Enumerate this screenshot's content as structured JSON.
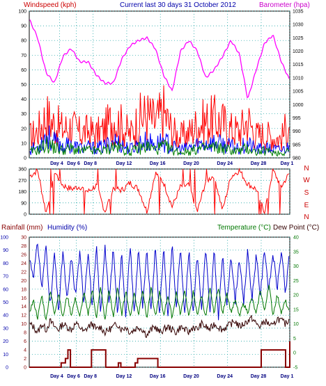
{
  "chart_data": [
    {
      "type": "line",
      "title": "Current last 30 days 31 October 2012",
      "ylabel": "Windspeed (kph)",
      "y2label": "Barometer (hpa)",
      "ylim": [
        0,
        100
      ],
      "y2lim": [
        980,
        1035
      ],
      "yticks": [
        "0",
        "10",
        "20",
        "30",
        "40",
        "50",
        "60",
        "70",
        "80",
        "90",
        "100"
      ],
      "y2ticks": [
        "980",
        "985",
        "990",
        "995",
        "1000",
        "1005",
        "1010",
        "1015",
        "1020",
        "1025",
        "1030",
        "1035"
      ],
      "xticks": [
        "Day 4",
        "Day 6",
        "Day 8",
        "Day 12",
        "Day 16",
        "Day 20",
        "Day 24",
        "Day 28",
        "Day 1"
      ],
      "grid": true,
      "series": [
        {
          "name": "Barometer",
          "color": "#ff00ff",
          "axis": "right",
          "days": [
            0,
            1,
            2,
            3,
            4,
            5,
            6,
            7,
            8,
            9,
            10,
            11,
            12,
            13,
            14,
            15,
            16,
            17,
            18,
            19,
            20,
            21,
            22,
            23,
            24,
            25,
            26,
            27,
            28,
            29,
            30,
            31
          ],
          "values": [
            1032,
            1025,
            1012,
            1008,
            1018,
            1021,
            1016,
            1016,
            1011,
            1008,
            1008,
            1017,
            1022,
            1024,
            1025,
            1021,
            1011,
            1005,
            1020,
            1024,
            1020,
            1010,
            1013,
            1018,
            1024,
            1019,
            1002,
            1013,
            1023,
            1026,
            1016,
            1009
          ]
        },
        {
          "name": "Gust",
          "color": "#ff0000",
          "axis": "left",
          "days": [
            0,
            1,
            2,
            3,
            4,
            5,
            6,
            7,
            8,
            9,
            10,
            11,
            12,
            13,
            14,
            15,
            16,
            17,
            18,
            19,
            20,
            21,
            22,
            23,
            24,
            25,
            26,
            27,
            28,
            29,
            30,
            31
          ],
          "values": [
            22,
            28,
            44,
            35,
            30,
            33,
            26,
            28,
            25,
            30,
            42,
            34,
            24,
            40,
            45,
            37,
            48,
            28,
            22,
            26,
            35,
            38,
            40,
            37,
            30,
            28,
            40,
            24,
            25,
            22,
            20,
            40
          ]
        },
        {
          "name": "Average",
          "color": "#0000ff",
          "axis": "left",
          "days": [
            0,
            1,
            2,
            3,
            4,
            5,
            6,
            7,
            8,
            9,
            10,
            11,
            12,
            13,
            14,
            15,
            16,
            17,
            18,
            19,
            20,
            21,
            22,
            23,
            24,
            25,
            26,
            27,
            28,
            29,
            30,
            31
          ],
          "values": [
            9,
            11,
            24,
            16,
            12,
            14,
            10,
            11,
            10,
            12,
            18,
            14,
            9,
            15,
            17,
            14,
            18,
            11,
            9,
            10,
            14,
            15,
            16,
            14,
            12,
            11,
            15,
            9,
            10,
            9,
            8,
            12
          ]
        },
        {
          "name": "Wind",
          "color": "#008000",
          "axis": "left",
          "days": [
            0,
            1,
            2,
            3,
            4,
            5,
            6,
            7,
            8,
            9,
            10,
            11,
            12,
            13,
            14,
            15,
            16,
            17,
            18,
            19,
            20,
            21,
            22,
            23,
            24,
            25,
            26,
            27,
            28,
            29,
            30,
            31
          ],
          "values": [
            6,
            8,
            14,
            11,
            8,
            10,
            7,
            8,
            7,
            8,
            12,
            10,
            6,
            10,
            12,
            9,
            12,
            8,
            6,
            7,
            9,
            10,
            11,
            10,
            8,
            7,
            10,
            6,
            7,
            6,
            5,
            9
          ]
        }
      ]
    },
    {
      "type": "line",
      "ylabel": "Wind direction",
      "ylim": [
        0,
        360
      ],
      "yticks": [
        "0",
        "90",
        "180",
        "270",
        "360"
      ],
      "compass": [
        "N",
        "W",
        "S",
        "E",
        "N"
      ],
      "xticks": [
        "Day 4",
        "Day 6",
        "Day 8",
        "Day 12",
        "Day 16",
        "Day 20",
        "Day 24",
        "Day 28",
        "Day 1"
      ],
      "series": [
        {
          "name": "Direction",
          "color": "#ff0000",
          "days": [
            0,
            1,
            2,
            3,
            4,
            5,
            6,
            7,
            8,
            9,
            10,
            11,
            12,
            13,
            14,
            15,
            16,
            17,
            18,
            19,
            20,
            21,
            22,
            23,
            24,
            25,
            26,
            27,
            28,
            29,
            30,
            31
          ],
          "values": [
            300,
            350,
            10,
            340,
            230,
            200,
            220,
            180,
            230,
            20,
            210,
            190,
            250,
            200,
            20,
            330,
            250,
            60,
            220,
            230,
            20,
            260,
            310,
            30,
            300,
            350,
            240,
            200,
            20,
            350,
            220,
            330
          ]
        }
      ]
    },
    {
      "type": "line",
      "ylabel": "Rainfall (mm)",
      "ylabel2": "Humidity (%)",
      "y2label": "Temperature (°C)",
      "y3label": "Dew Point (°C)",
      "ylim": [
        0,
        100
      ],
      "rain_ticks": [
        "0",
        "2",
        "4",
        "6",
        "8",
        "10",
        "12",
        "14",
        "16",
        "18",
        "20",
        "22",
        "24",
        "26",
        "28",
        "30"
      ],
      "humidity_ticks": [
        "0",
        "10",
        "20",
        "30",
        "40",
        "50",
        "60",
        "70",
        "80",
        "90",
        "100"
      ],
      "temp_ticks": [
        "-5",
        "0",
        "5",
        "10",
        "15",
        "20",
        "25",
        "30",
        "35",
        "40"
      ],
      "xticks": [
        "Day 4",
        "Day 6",
        "Day 8",
        "Day 12",
        "Day 16",
        "Day 20",
        "Day 24",
        "Day 28",
        "Day 1"
      ],
      "series": [
        {
          "name": "Humidity",
          "color": "#0000cc",
          "axis": "humidity",
          "days": [
            0,
            0.5,
            1,
            1.5,
            2,
            2.5,
            3,
            3.5,
            4,
            4.5,
            5,
            5.5,
            6,
            6.5,
            7,
            7.5,
            8,
            8.5,
            9,
            9.5,
            10,
            10.5,
            11,
            11.5,
            12,
            12.5,
            13,
            13.5,
            14,
            14.5,
            15,
            15.5,
            16,
            16.5,
            17,
            17.5,
            18,
            18.5,
            19,
            19.5,
            20,
            20.5,
            21,
            21.5,
            22,
            22.5,
            23,
            23.5,
            24,
            24.5,
            25,
            25.5,
            26,
            26.5,
            27,
            27.5,
            28,
            28.5,
            29,
            29.5,
            30,
            30.5,
            31
          ],
          "values": [
            85,
            70,
            96,
            60,
            94,
            45,
            88,
            42,
            90,
            50,
            85,
            55,
            88,
            50,
            90,
            45,
            92,
            40,
            95,
            48,
            92,
            42,
            88,
            38,
            95,
            40,
            93,
            45,
            90,
            42,
            92,
            40,
            93,
            38,
            96,
            45,
            94,
            40,
            90,
            42,
            88,
            44,
            92,
            40,
            90,
            38,
            86,
            45,
            88,
            50,
            85,
            48,
            90,
            52,
            86,
            55,
            92,
            58,
            88,
            60,
            90,
            55,
            92
          ]
        },
        {
          "name": "Temperature",
          "color": "#007700",
          "axis": "temp",
          "days": [
            0,
            0.5,
            1,
            1.5,
            2,
            2.5,
            3,
            3.5,
            4,
            4.5,
            5,
            5.5,
            6,
            6.5,
            7,
            7.5,
            8,
            8.5,
            9,
            9.5,
            10,
            10.5,
            11,
            11.5,
            12,
            12.5,
            13,
            13.5,
            14,
            14.5,
            15,
            15.5,
            16,
            16.5,
            17,
            17.5,
            18,
            18.5,
            19,
            19.5,
            20,
            20.5,
            21,
            21.5,
            22,
            22.5,
            23,
            23.5,
            24,
            24.5,
            25,
            25.5,
            26,
            26.5,
            27,
            27.5,
            28,
            28.5,
            29,
            29.5,
            30,
            30.5,
            31
          ],
          "values": [
            14,
            18,
            12,
            20,
            11,
            22,
            13,
            21,
            12,
            20,
            13,
            19,
            12,
            21,
            13,
            22,
            12,
            23,
            11,
            22,
            12,
            23,
            13,
            22,
            12,
            21,
            13,
            22,
            12,
            23,
            12,
            21,
            13,
            20,
            12,
            21,
            13,
            22,
            12,
            21,
            13,
            20,
            12,
            22,
            14,
            23,
            13,
            21,
            14,
            18,
            13,
            17,
            14,
            19,
            13,
            22,
            14,
            24,
            13,
            20,
            14,
            18,
            13
          ]
        },
        {
          "name": "Dew Point",
          "color": "#330000",
          "axis": "temp",
          "days": [
            0,
            0.5,
            1,
            1.5,
            2,
            2.5,
            3,
            3.5,
            4,
            4.5,
            5,
            5.5,
            6,
            6.5,
            7,
            7.5,
            8,
            8.5,
            9,
            9.5,
            10,
            10.5,
            11,
            11.5,
            12,
            12.5,
            13,
            13.5,
            14,
            14.5,
            15,
            15.5,
            16,
            16.5,
            17,
            17.5,
            18,
            18.5,
            19,
            19.5,
            20,
            20.5,
            21,
            21.5,
            22,
            22.5,
            23,
            23.5,
            24,
            24.5,
            25,
            25.5,
            26,
            26.5,
            27,
            27.5,
            28,
            28.5,
            29,
            29.5,
            30,
            30.5,
            31
          ],
          "values": [
            10,
            9,
            7,
            10,
            8,
            11,
            9,
            8,
            10,
            9,
            8,
            10,
            9,
            7,
            9,
            10,
            8,
            9,
            7,
            8,
            9,
            10,
            8,
            9,
            7,
            8,
            9,
            8,
            6,
            8,
            9,
            7,
            8,
            9,
            8,
            7,
            9,
            8,
            7,
            9,
            8,
            10,
            9,
            8,
            10,
            9,
            8,
            9,
            10,
            11,
            9,
            10,
            11,
            12,
            10,
            9,
            11,
            10,
            9,
            12,
            11,
            10,
            12
          ]
        },
        {
          "name": "Rainfall",
          "color": "#880000",
          "axis": "rain",
          "days": [
            0,
            3.6,
            3.8,
            4.3,
            4.6,
            4.9,
            7.2,
            7.4,
            8.8,
            9.1,
            10.0,
            10.6,
            10.9,
            11.8,
            12.6,
            12.9,
            15.0,
            15.3,
            21.0,
            26.0,
            27.2,
            27.6,
            28.5,
            30.5,
            31
          ],
          "values": [
            0,
            0,
            1,
            2,
            4,
            0,
            0,
            4,
            4,
            0,
            0,
            1,
            0,
            0,
            1,
            2,
            2,
            0,
            0,
            0,
            0,
            4,
            4,
            0,
            6
          ]
        }
      ]
    }
  ]
}
